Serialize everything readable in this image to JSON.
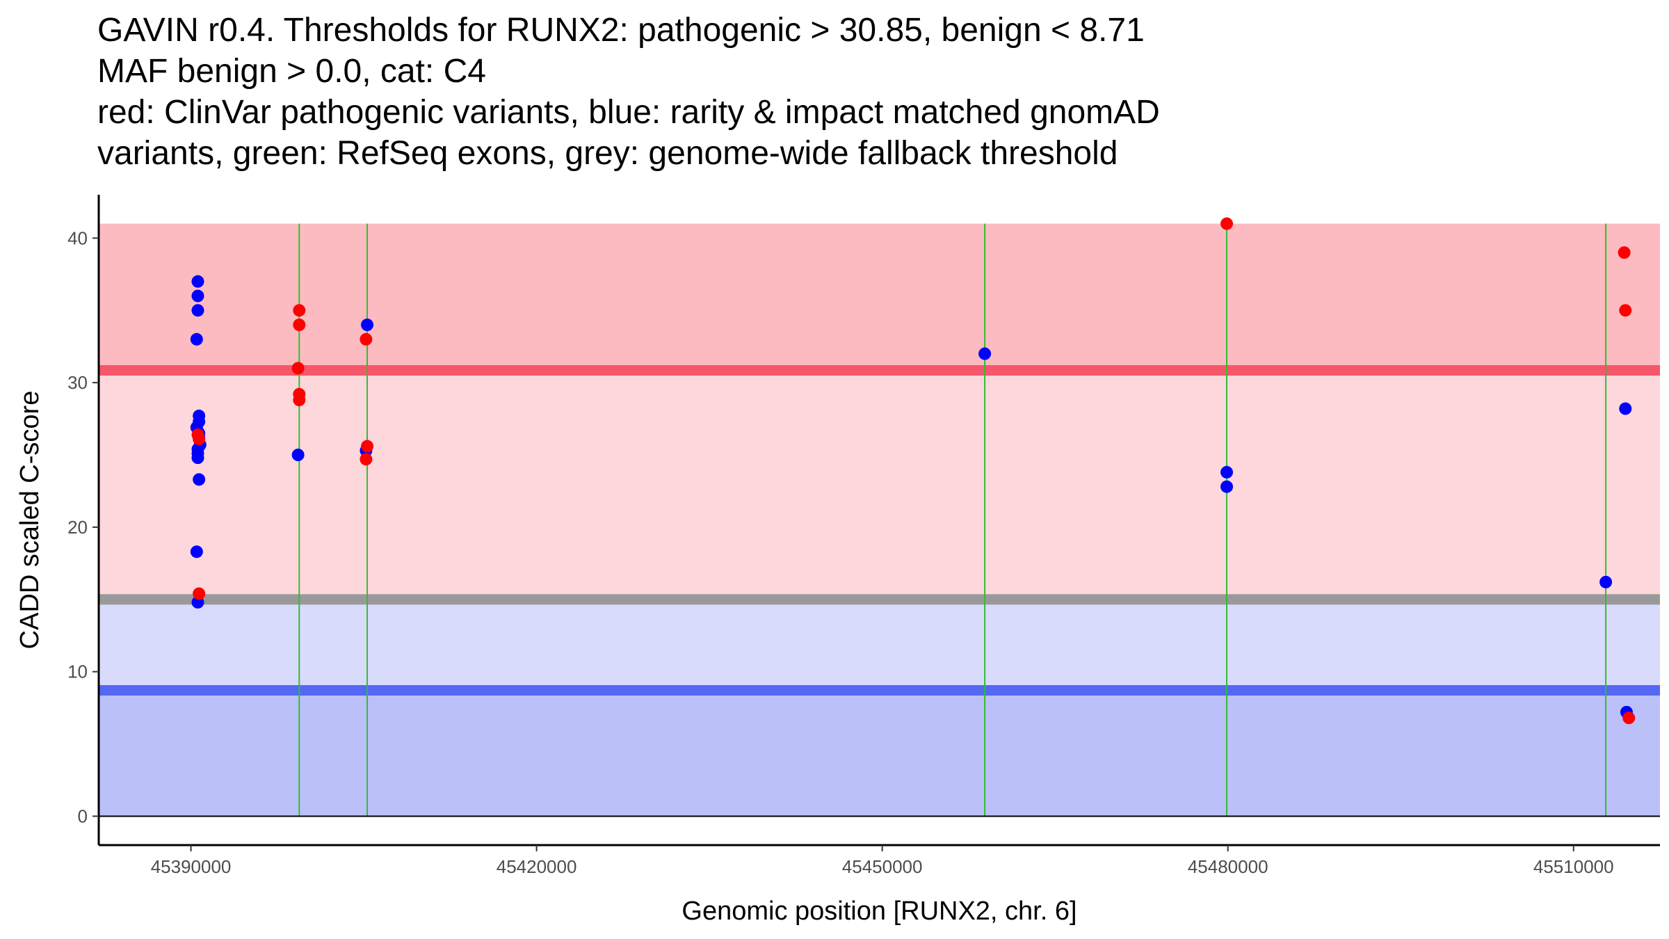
{
  "title_lines": [
    "GAVIN r0.4. Thresholds for RUNX2: pathogenic > 30.85, benign < 8.71",
    "MAF benign > 0.0, cat: C4",
    "red: ClinVar pathogenic variants, blue: rarity & impact matched gnomAD",
    "variants, green: RefSeq exons, grey: genome-wide fallback threshold"
  ],
  "chart_data": {
    "type": "scatter",
    "xlabel": "Genomic position [RUNX2, chr. 6]",
    "ylabel": "CADD scaled C-score",
    "xlim": [
      45382000,
      45517500
    ],
    "ylim": [
      -2,
      43
    ],
    "x_ticks": [
      45390000,
      45420000,
      45450000,
      45480000,
      45510000
    ],
    "y_ticks": [
      0,
      10,
      20,
      30,
      40
    ],
    "colors": {
      "pathogenic_zone": "#fcbbc0",
      "vus_zone": "#fdd7db",
      "lower_zone": "#d8dbfc",
      "benign_zone": "#bbc0f8",
      "pathogenic_line": "#f5566a",
      "benign_line": "#5468f3",
      "fallback_line": "#999999",
      "exon": "#33bb33",
      "pathogenic_point": "#ff0000",
      "gnomad_point": "#0000ff"
    },
    "bands": [
      {
        "name": "pathogenic-zone",
        "ymin": 30.85,
        "ymax": 41
      },
      {
        "name": "vus-zone",
        "ymin": 15,
        "ymax": 30.85
      },
      {
        "name": "lower-zone",
        "ymin": 8.71,
        "ymax": 15
      },
      {
        "name": "benign-zone",
        "ymin": 0,
        "ymax": 8.71
      }
    ],
    "thresholds": {
      "pathogenic": 30.85,
      "benign": 8.71,
      "fallback": 15
    },
    "exons": [
      45399400,
      45405300,
      45458900,
      45479900,
      45512800
    ],
    "series": [
      {
        "name": "gnomAD variants",
        "color": "blue",
        "points": [
          [
            45390600,
            37
          ],
          [
            45390600,
            36
          ],
          [
            45390600,
            35
          ],
          [
            45390500,
            33
          ],
          [
            45390700,
            27.7
          ],
          [
            45390700,
            27.3
          ],
          [
            45390500,
            26.9
          ],
          [
            45390700,
            26.5
          ],
          [
            45390700,
            26.2
          ],
          [
            45390800,
            25.7
          ],
          [
            45390600,
            25.4
          ],
          [
            45390600,
            25.1
          ],
          [
            45390600,
            24.8
          ],
          [
            45390700,
            23.3
          ],
          [
            45390500,
            18.3
          ],
          [
            45390600,
            14.8
          ],
          [
            45399300,
            25
          ],
          [
            45405300,
            34
          ],
          [
            45405200,
            25.3
          ],
          [
            45458900,
            32
          ],
          [
            45479900,
            23.8
          ],
          [
            45479900,
            22.8
          ],
          [
            45512800,
            16.2
          ],
          [
            45514500,
            28.2
          ],
          [
            45514600,
            7.2
          ]
        ]
      },
      {
        "name": "ClinVar pathogenic variants",
        "color": "red",
        "points": [
          [
            45399400,
            35
          ],
          [
            45399400,
            34
          ],
          [
            45399300,
            31
          ],
          [
            45399400,
            29.2
          ],
          [
            45399400,
            28.8
          ],
          [
            45405200,
            33
          ],
          [
            45405300,
            25.6
          ],
          [
            45405200,
            24.7
          ],
          [
            45390600,
            26.4
          ],
          [
            45390700,
            26.1
          ],
          [
            45390700,
            15.4
          ],
          [
            45479900,
            41
          ],
          [
            45514400,
            39
          ],
          [
            45514500,
            35
          ],
          [
            45514800,
            6.8
          ]
        ]
      }
    ]
  }
}
